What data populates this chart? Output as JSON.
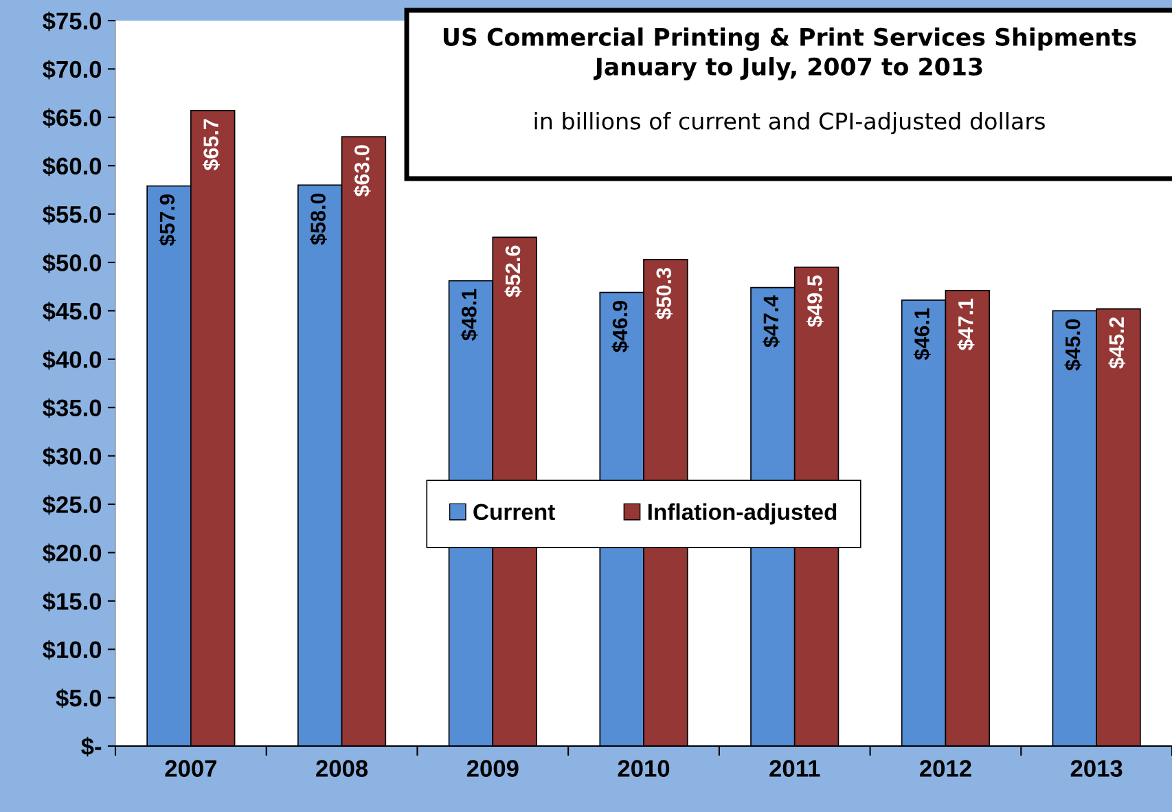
{
  "chart_data": {
    "type": "bar",
    "title": "US Commercial Printing & Print Services Shipments\nJanuary to July, 2007 to 2013",
    "subtitle": "in billions of current and CPI-adjusted dollars",
    "categories": [
      "2007",
      "2008",
      "2009",
      "2010",
      "2011",
      "2012",
      "2013"
    ],
    "series": [
      {
        "name": "Current",
        "color": "#558ed5",
        "values": [
          57.9,
          58.0,
          48.1,
          46.9,
          47.4,
          46.1,
          45.0
        ],
        "value_labels": [
          "$57.9",
          "$58.0",
          "$48.1",
          "$46.9",
          "$47.4",
          "$46.1",
          "$45.0"
        ]
      },
      {
        "name": "Inflation-adjusted",
        "color": "#953735",
        "values": [
          65.7,
          63.0,
          52.6,
          50.3,
          49.5,
          47.1,
          45.2
        ],
        "value_labels": [
          "$65.7",
          "$63.0",
          "$52.6",
          "$50.3",
          "$49.5",
          "$47.1",
          "$45.2"
        ]
      }
    ],
    "ylim": [
      0,
      75
    ],
    "yticks": [
      {
        "value": 0,
        "label": "$-"
      },
      {
        "value": 5,
        "label": "$5.0"
      },
      {
        "value": 10,
        "label": "$10.0"
      },
      {
        "value": 15,
        "label": "$15.0"
      },
      {
        "value": 20,
        "label": "$20.0"
      },
      {
        "value": 25,
        "label": "$25.0"
      },
      {
        "value": 30,
        "label": "$30.0"
      },
      {
        "value": 35,
        "label": "$35.0"
      },
      {
        "value": 40,
        "label": "$40.0"
      },
      {
        "value": 45,
        "label": "$45.0"
      },
      {
        "value": 50,
        "label": "$50.0"
      },
      {
        "value": 55,
        "label": "$55.0"
      },
      {
        "value": 60,
        "label": "$60.0"
      },
      {
        "value": 65,
        "label": "$65.0"
      },
      {
        "value": 70,
        "label": "$70.0"
      },
      {
        "value": 75,
        "label": "$75.0"
      }
    ],
    "grid": false,
    "legend": "center"
  }
}
